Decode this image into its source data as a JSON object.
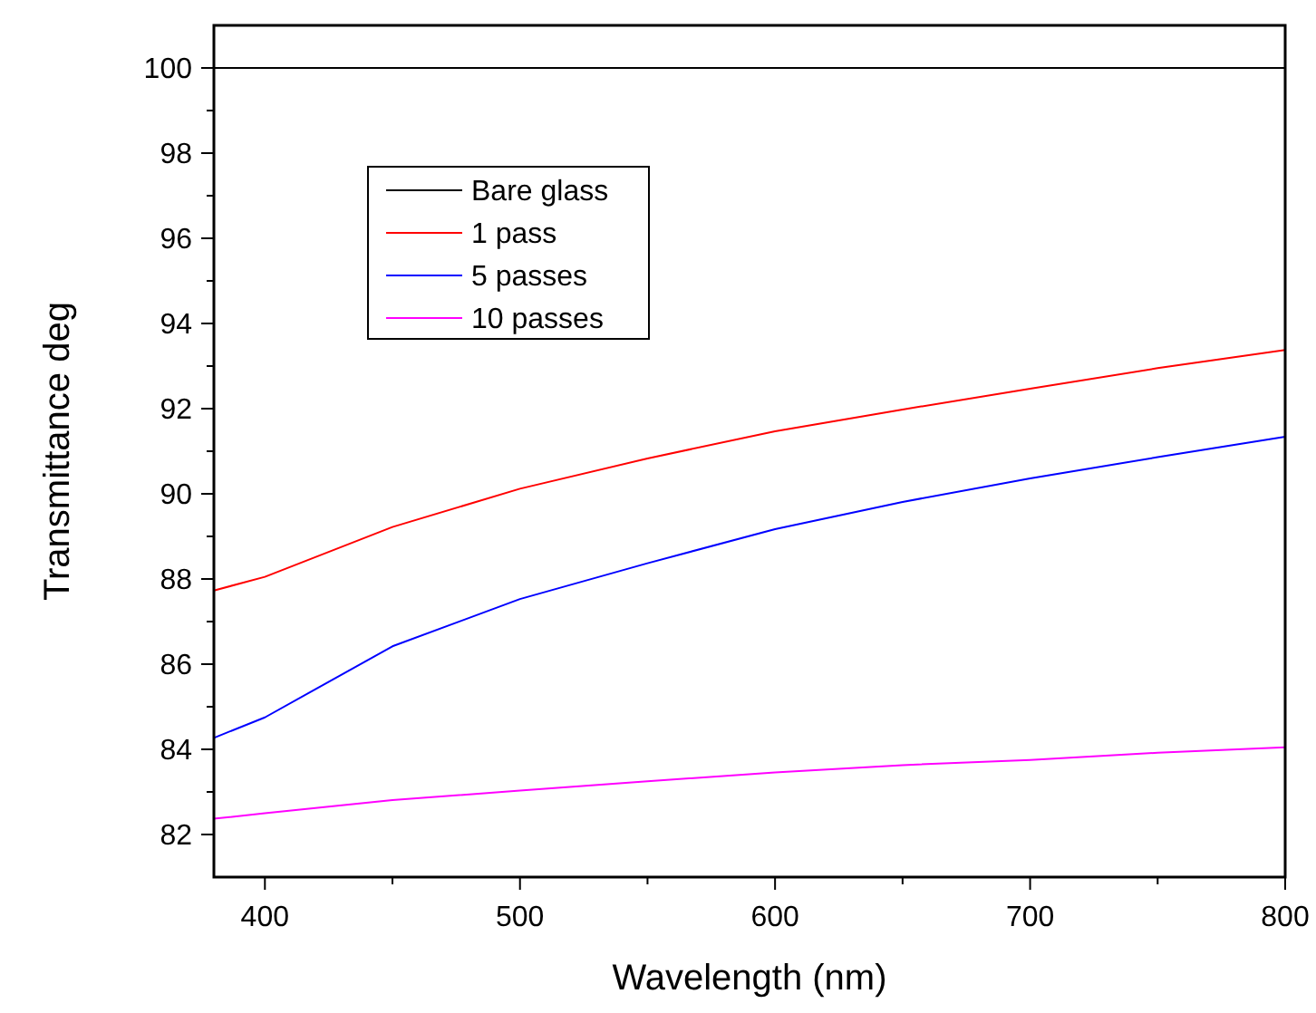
{
  "chart_data": {
    "type": "line",
    "xlabel": "Wavelength (nm)",
    "ylabel": "Transmittance deg",
    "xlim": [
      380,
      800
    ],
    "ylim": [
      81,
      101
    ],
    "xticks": [
      400,
      {
        "value": 450,
        "label": null
      },
      500,
      {
        "value": 550,
        "label": null
      },
      600,
      {
        "value": 650,
        "label": null
      },
      700,
      {
        "value": 750,
        "label": null
      },
      800
    ],
    "yticks": [
      82,
      {
        "value": 83,
        "label": null
      },
      84,
      {
        "value": 85,
        "label": null
      },
      86,
      {
        "value": 87,
        "label": null
      },
      88,
      {
        "value": 89,
        "label": null
      },
      90,
      {
        "value": 91,
        "label": null
      },
      92,
      {
        "value": 93,
        "label": null
      },
      94,
      {
        "value": 95,
        "label": null
      },
      96,
      {
        "value": 97,
        "label": null
      },
      98,
      {
        "value": 99,
        "label": null
      },
      100
    ],
    "x": [
      380,
      400,
      450,
      500,
      550,
      600,
      650,
      700,
      750,
      800
    ],
    "legend": "top left",
    "grid": false,
    "marker": "none",
    "line_style": "solid",
    "series": [
      {
        "name": "Bare glass",
        "color": "#000000",
        "values": [
          100,
          100,
          100,
          100,
          100,
          100,
          100,
          100,
          100,
          100
        ]
      },
      {
        "name": "1 pass",
        "color": "#ff0000",
        "values": [
          87.73,
          88.05,
          89.22,
          90.12,
          90.83,
          91.47,
          91.98,
          92.47,
          92.95,
          93.38
        ]
      },
      {
        "name": "5 passes",
        "color": "#0000ff",
        "values": [
          84.27,
          84.75,
          86.42,
          87.53,
          88.37,
          89.17,
          89.81,
          90.36,
          90.86,
          91.34
        ]
      },
      {
        "name": "10 passes",
        "color": "#ff00ff",
        "values": [
          82.37,
          82.5,
          82.81,
          83.03,
          83.25,
          83.46,
          83.63,
          83.75,
          83.92,
          84.05
        ]
      }
    ]
  }
}
